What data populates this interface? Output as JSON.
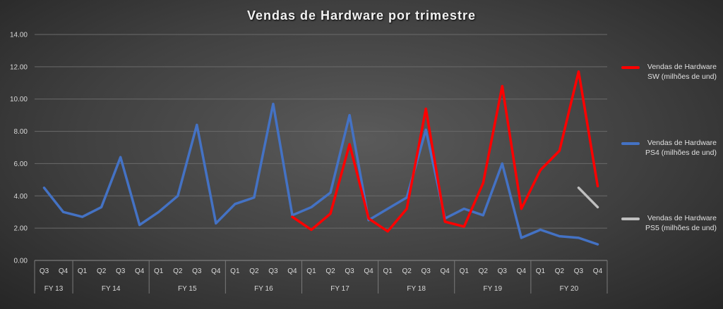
{
  "chart_data": {
    "type": "line",
    "title": "Vendas de Hardware  por trimestre",
    "ylim": [
      0,
      14
    ],
    "y_ticks": [
      "0.00",
      "2.00",
      "4.00",
      "6.00",
      "8.00",
      "10.00",
      "12.00",
      "14.00"
    ],
    "grid": true,
    "legend_position": "right",
    "categories": [
      "Q3",
      "Q4",
      "Q1",
      "Q2",
      "Q3",
      "Q4",
      "Q1",
      "Q2",
      "Q3",
      "Q4",
      "Q1",
      "Q2",
      "Q3",
      "Q4",
      "Q1",
      "Q2",
      "Q3",
      "Q4",
      "Q1",
      "Q2",
      "Q3",
      "Q4",
      "Q1",
      "Q2",
      "Q3",
      "Q4",
      "Q1",
      "Q2",
      "Q3",
      "Q4"
    ],
    "groups": [
      {
        "label": "FY  13",
        "count": 2
      },
      {
        "label": "FY 14",
        "count": 4
      },
      {
        "label": "FY 15",
        "count": 4
      },
      {
        "label": "FY 16",
        "count": 4
      },
      {
        "label": "FY 17",
        "count": 4
      },
      {
        "label": "FY 18",
        "count": 4
      },
      {
        "label": "FY 19",
        "count": 4
      },
      {
        "label": "FY 20",
        "count": 4
      }
    ],
    "series": [
      {
        "name": "Vendas de Hardware SW (milhões de und)",
        "name_lines": [
          "Vendas de Hardware",
          "SW (milhões de und)"
        ],
        "color": "#ff0000",
        "values": [
          null,
          null,
          null,
          null,
          null,
          null,
          null,
          null,
          null,
          null,
          null,
          null,
          null,
          2.7,
          1.9,
          2.9,
          7.2,
          2.6,
          1.8,
          3.2,
          9.4,
          2.4,
          2.1,
          4.8,
          10.8,
          3.2,
          5.6,
          6.8,
          11.7,
          4.6
        ]
      },
      {
        "name": "Vendas de Hardware PS4 (milhões de und)",
        "name_lines": [
          "Vendas de Hardware",
          "PS4 (milhões de und)"
        ],
        "color": "#4472c4",
        "values": [
          4.5,
          3.0,
          2.7,
          3.3,
          6.4,
          2.2,
          3.0,
          4.0,
          8.4,
          2.3,
          3.5,
          3.9,
          9.7,
          2.8,
          3.3,
          4.2,
          9.0,
          2.5,
          3.2,
          3.9,
          8.1,
          2.6,
          3.2,
          2.8,
          6.0,
          1.4,
          1.9,
          1.5,
          1.4,
          1.0
        ]
      },
      {
        "name": "Vendas de Hardware PS5 (milhões de und)",
        "name_lines": [
          "Vendas de Hardware",
          "PS5 (milhões de und)"
        ],
        "color": "#bfbfbf",
        "values": [
          null,
          null,
          null,
          null,
          null,
          null,
          null,
          null,
          null,
          null,
          null,
          null,
          null,
          null,
          null,
          null,
          null,
          null,
          null,
          null,
          null,
          null,
          null,
          null,
          null,
          null,
          null,
          null,
          4.5,
          3.3
        ]
      }
    ]
  }
}
